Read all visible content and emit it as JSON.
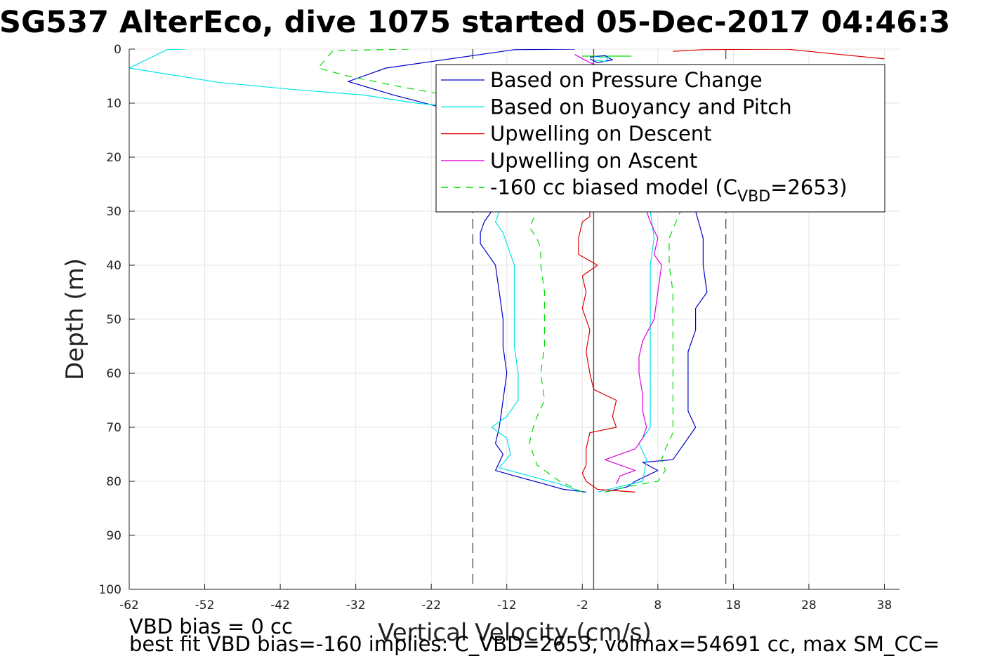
{
  "title": "SG537 AlterEco, dive 1075 started 05-Dec-2017 04:46:3",
  "footer": {
    "line1": "VBD bias = 0 cc",
    "line2": "best fit VBD bias=-160 implies: C_VBD=2653, volmax=54691 cc, max SM_CC="
  },
  "chart_data": {
    "type": "line",
    "xlabel": "Vertical Velocity (cm/s)",
    "ylabel": "Depth (m)",
    "xlim": [
      -62,
      40
    ],
    "ylim": [
      0,
      100
    ],
    "y_reversed": true,
    "grid": true,
    "legend_position": "top-right",
    "xticks": [
      -62,
      -52,
      -42,
      -32,
      -22,
      -12,
      -2,
      8,
      18,
      28,
      38
    ],
    "yticks": [
      0,
      10,
      20,
      30,
      40,
      50,
      60,
      70,
      80,
      90,
      100
    ],
    "vertical_lines": [
      {
        "x": -0.5,
        "style": "solid",
        "color": "#555555"
      },
      {
        "x": -16.5,
        "style": "dashed",
        "color": "#555555"
      },
      {
        "x": 17,
        "style": "dashed",
        "color": "#555555"
      }
    ],
    "legend": [
      {
        "label": "Based on Pressure Change",
        "color": "#0000cc",
        "dash": "none"
      },
      {
        "label": "Based on Buoyancy and Pitch",
        "color": "#00e5e5",
        "dash": "none"
      },
      {
        "label": "Upwelling on Descent",
        "color": "#dd0000",
        "dash": "none"
      },
      {
        "label": "Upwelling on Ascent",
        "color": "#e000e0",
        "dash": "none"
      },
      {
        "label": "-160 cc biased model (C",
        "sub": "VBD",
        "suffix": "=2653)",
        "color": "#00dd00",
        "dash": "10,8"
      }
    ],
    "series": [
      {
        "key": "pressure_desc",
        "color": "#0000cc",
        "dash": "none",
        "points": [
          [
            -3,
            0
          ],
          [
            -11,
            0.1
          ],
          [
            -28,
            3.5
          ],
          [
            -33,
            6
          ],
          [
            -27,
            8.5
          ],
          [
            -21.5,
            10.5
          ],
          [
            -16.5,
            11.5
          ],
          [
            -14,
            30
          ],
          [
            -15,
            32
          ],
          [
            -15.5,
            34
          ],
          [
            -15.5,
            36
          ],
          [
            -14.5,
            38
          ],
          [
            -13.5,
            40
          ],
          [
            -13,
            45
          ],
          [
            -12.5,
            50
          ],
          [
            -12.5,
            55
          ],
          [
            -12,
            60
          ],
          [
            -12.5,
            65
          ],
          [
            -13,
            70
          ],
          [
            -13.5,
            73
          ],
          [
            -12.5,
            75
          ],
          [
            -13.5,
            78
          ],
          [
            -11,
            79
          ],
          [
            -7,
            80.5
          ],
          [
            -4.5,
            81.5
          ],
          [
            -1.5,
            82
          ]
        ]
      },
      {
        "key": "pressure_asc",
        "color": "#0000cc",
        "dash": "none",
        "points": [
          [
            1,
            82
          ],
          [
            4,
            81
          ],
          [
            5,
            80
          ],
          [
            8,
            78
          ],
          [
            6,
            76.5
          ],
          [
            10,
            76
          ],
          [
            11,
            74
          ],
          [
            12,
            72
          ],
          [
            13,
            70
          ],
          [
            12,
            67
          ],
          [
            12,
            64
          ],
          [
            12,
            60
          ],
          [
            12,
            56
          ],
          [
            13,
            52
          ],
          [
            13,
            48
          ],
          [
            14.5,
            45
          ],
          [
            14,
            40
          ],
          [
            14,
            35
          ],
          [
            13,
            30
          ],
          [
            13,
            20
          ],
          [
            14,
            10
          ]
        ]
      },
      {
        "key": "buoyancy_desc",
        "color": "#00e5e5",
        "dash": "none",
        "points": [
          [
            -54.5,
            0
          ],
          [
            -57,
            0.1
          ],
          [
            -62,
            3.5
          ],
          [
            -50,
            6.2
          ],
          [
            -40,
            7.5
          ],
          [
            -31,
            8.5
          ],
          [
            -24,
            10
          ],
          [
            -16.5,
            11
          ],
          [
            -13,
            30
          ],
          [
            -13.5,
            32
          ],
          [
            -12.5,
            34
          ],
          [
            -12,
            36
          ],
          [
            -11.5,
            38
          ],
          [
            -11,
            40
          ],
          [
            -11,
            45
          ],
          [
            -11,
            50
          ],
          [
            -11,
            55
          ],
          [
            -10.5,
            60
          ],
          [
            -10.5,
            65
          ],
          [
            -12,
            68
          ],
          [
            -14,
            70
          ],
          [
            -12,
            72
          ],
          [
            -11.5,
            75
          ],
          [
            -13,
            77.5
          ],
          [
            -9,
            79
          ],
          [
            -5,
            80.5
          ],
          [
            -2,
            82
          ]
        ]
      },
      {
        "key": "buoyancy_asc",
        "color": "#00e5e5",
        "dash": "none",
        "points": [
          [
            0,
            82
          ],
          [
            3,
            81
          ],
          [
            6,
            80
          ],
          [
            6.5,
            76
          ],
          [
            5.5,
            73
          ],
          [
            7,
            70
          ],
          [
            7,
            65
          ],
          [
            7,
            60
          ],
          [
            7,
            55
          ],
          [
            7,
            50
          ],
          [
            7,
            45
          ],
          [
            7,
            40
          ],
          [
            7.5,
            35
          ],
          [
            7,
            30
          ],
          [
            7.5,
            20
          ],
          [
            8,
            10
          ]
        ]
      },
      {
        "key": "model_desc",
        "color": "#00dd00",
        "dash": "10,8",
        "points": [
          [
            -25,
            0
          ],
          [
            -35,
            0.3
          ],
          [
            -37,
            3.5
          ],
          [
            -33,
            5
          ],
          [
            -26,
            7
          ],
          [
            -20,
            8.5
          ],
          [
            -16.5,
            9.5
          ],
          [
            -8,
            30
          ],
          [
            -9,
            33
          ],
          [
            -8,
            35
          ],
          [
            -7.5,
            37
          ],
          [
            -7.5,
            40
          ],
          [
            -7,
            45
          ],
          [
            -7,
            50
          ],
          [
            -7,
            55
          ],
          [
            -7.5,
            60
          ],
          [
            -7,
            65
          ],
          [
            -8,
            68
          ],
          [
            -8.5,
            70
          ],
          [
            -9,
            73
          ],
          [
            -8.5,
            75
          ],
          [
            -8,
            77
          ],
          [
            -5,
            80
          ],
          [
            -2,
            82
          ]
        ]
      },
      {
        "key": "model_asc",
        "color": "#00dd00",
        "dash": "10,8",
        "points": [
          [
            1,
            82
          ],
          [
            4,
            81
          ],
          [
            8,
            80
          ],
          [
            9,
            78
          ],
          [
            8.5,
            76
          ],
          [
            9,
            74
          ],
          [
            10,
            71
          ],
          [
            10,
            68
          ],
          [
            10,
            64
          ],
          [
            10,
            60
          ],
          [
            10,
            55
          ],
          [
            10,
            50
          ],
          [
            10,
            45
          ],
          [
            9.5,
            40
          ],
          [
            9.5,
            35
          ],
          [
            11,
            30
          ],
          [
            11,
            20
          ],
          [
            11,
            10
          ]
        ]
      },
      {
        "key": "model_surface",
        "color": "#00dd00",
        "dash": "none",
        "points": [
          [
            -2,
            1.3
          ],
          [
            4.5,
            1.3
          ]
        ]
      },
      {
        "key": "upwell_desc",
        "color": "#dd0000",
        "dash": "none",
        "points": [
          [
            -1,
            30
          ],
          [
            -1,
            31
          ],
          [
            -2,
            32
          ],
          [
            -2.5,
            35
          ],
          [
            -2.5,
            38
          ],
          [
            0,
            40
          ],
          [
            -2,
            42
          ],
          [
            -1.5,
            45
          ],
          [
            -2,
            48
          ],
          [
            -1,
            52
          ],
          [
            -1.5,
            56
          ],
          [
            -1,
            60
          ],
          [
            -0.5,
            63
          ],
          [
            2.5,
            65
          ],
          [
            2,
            68
          ],
          [
            2.5,
            70
          ],
          [
            -1,
            71
          ],
          [
            -1.5,
            74
          ],
          [
            -1.5,
            77
          ],
          [
            -2,
            78.5
          ],
          [
            -1.5,
            80
          ],
          [
            0,
            81.5
          ],
          [
            5,
            82
          ]
        ]
      },
      {
        "key": "upwell_desc_top",
        "color": "#dd0000",
        "dash": "none",
        "points": [
          [
            10,
            0.4
          ],
          [
            14,
            0.1
          ],
          [
            25,
            0
          ],
          [
            38,
            1.8
          ]
        ]
      },
      {
        "key": "upwell_asc",
        "color": "#e000e0",
        "dash": "none",
        "points": [
          [
            2.5,
            80.5
          ],
          [
            3,
            79
          ],
          [
            5,
            78
          ],
          [
            1,
            76
          ],
          [
            5,
            74
          ],
          [
            6,
            72
          ],
          [
            6.5,
            70
          ],
          [
            6,
            67
          ],
          [
            6,
            64
          ],
          [
            5.5,
            60
          ],
          [
            5.5,
            57
          ],
          [
            6,
            54
          ],
          [
            7.5,
            50
          ],
          [
            8,
            45
          ],
          [
            8.5,
            40
          ],
          [
            7.5,
            38
          ],
          [
            8,
            35
          ],
          [
            7,
            32
          ],
          [
            6.5,
            30
          ]
        ]
      },
      {
        "key": "upwell_asc_top",
        "color": "#e000e0",
        "dash": "none",
        "points": [
          [
            -3,
            1
          ],
          [
            -1,
            2.5
          ],
          [
            1,
            3.5
          ]
        ]
      },
      {
        "key": "surface_blob_1",
        "color": "#0000cc",
        "dash": "none",
        "points": [
          [
            -1,
            1.5
          ],
          [
            1,
            1.2
          ],
          [
            2,
            2
          ],
          [
            0,
            2.5
          ],
          [
            -1,
            1.8
          ]
        ]
      },
      {
        "key": "surface_blob_2",
        "color": "#00e5e5",
        "dash": "none",
        "points": [
          [
            -0.5,
            1.4
          ],
          [
            1.5,
            1.6
          ],
          [
            1,
            2.3
          ],
          [
            -0.5,
            2
          ]
        ]
      }
    ]
  }
}
